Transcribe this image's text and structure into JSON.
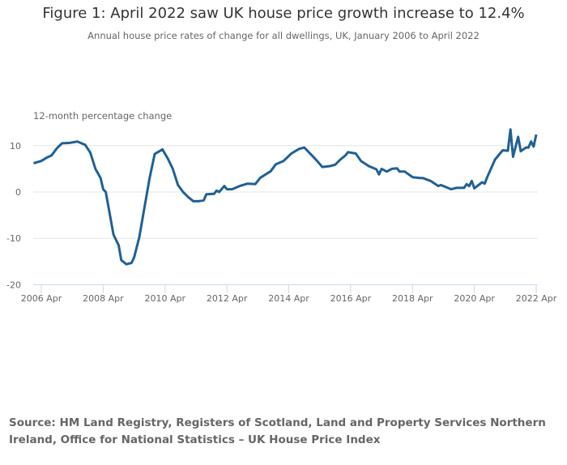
{
  "chart_data": {
    "type": "line",
    "title": "Figure 1: April 2022 saw UK house price growth increase to 12.4%",
    "subtitle": "Annual house price rates of change for all dwellings, UK, January 2006 to April 2022",
    "ylabel": "12-month percentage change",
    "xlabel": "",
    "ylim": [
      -20,
      13.5
    ],
    "yticks": [
      10,
      0,
      -10,
      -20
    ],
    "ytick_labels": [
      "10",
      "0",
      "-10",
      "-20"
    ],
    "xticks": [
      "2006-04",
      "2008-04",
      "2010-04",
      "2012-04",
      "2014-04",
      "2016-04",
      "2018-04",
      "2020-04",
      "2022-04"
    ],
    "xtick_labels": [
      "2006 Apr",
      "2008 Apr",
      "2010 Apr",
      "2012 Apr",
      "2014 Apr",
      "2016 Apr",
      "2018 Apr",
      "2020 Apr",
      "2022 Apr"
    ],
    "x_range": [
      "2006-01",
      "2022-04"
    ],
    "grid": true,
    "color": "#206095",
    "series": [
      {
        "name": "UK",
        "points": [
          [
            "2006-01",
            6.2
          ],
          [
            "2006-04",
            6.7
          ],
          [
            "2006-06",
            7.4
          ],
          [
            "2006-08",
            7.9
          ],
          [
            "2006-10",
            9.4
          ],
          [
            "2006-12",
            10.5
          ],
          [
            "2007-03",
            10.6
          ],
          [
            "2007-06",
            10.9
          ],
          [
            "2007-09",
            10.2
          ],
          [
            "2007-11",
            8.5
          ],
          [
            "2008-01",
            5.0
          ],
          [
            "2008-03",
            3.0
          ],
          [
            "2008-04",
            0.6
          ],
          [
            "2008-05",
            0.0
          ],
          [
            "2008-08",
            -9.2
          ],
          [
            "2008-10",
            -11.5
          ],
          [
            "2008-11",
            -14.7
          ],
          [
            "2009-01",
            -15.6
          ],
          [
            "2009-03",
            -15.3
          ],
          [
            "2009-04",
            -14.1
          ],
          [
            "2009-06",
            -9.8
          ],
          [
            "2009-08",
            -3.4
          ],
          [
            "2009-10",
            3.0
          ],
          [
            "2009-12",
            8.2
          ],
          [
            "2010-03",
            9.2
          ],
          [
            "2010-04",
            8.2
          ],
          [
            "2010-05",
            7.3
          ],
          [
            "2010-07",
            5.0
          ],
          [
            "2010-09",
            1.5
          ],
          [
            "2010-11",
            0.0
          ],
          [
            "2011-01",
            -1.1
          ],
          [
            "2011-03",
            -2.0
          ],
          [
            "2011-05",
            -2.0
          ],
          [
            "2011-07",
            -1.8
          ],
          [
            "2011-08",
            -0.5
          ],
          [
            "2011-11",
            -0.4
          ],
          [
            "2011-12",
            0.3
          ],
          [
            "2012-01",
            0.0
          ],
          [
            "2012-03",
            1.3
          ],
          [
            "2012-04",
            0.6
          ],
          [
            "2012-06",
            0.6
          ],
          [
            "2012-09",
            1.3
          ],
          [
            "2012-12",
            1.8
          ],
          [
            "2013-03",
            1.7
          ],
          [
            "2013-05",
            3.1
          ],
          [
            "2013-07",
            3.8
          ],
          [
            "2013-09",
            4.5
          ],
          [
            "2013-11",
            6.0
          ],
          [
            "2014-02",
            6.7
          ],
          [
            "2014-05",
            8.3
          ],
          [
            "2014-08",
            9.3
          ],
          [
            "2014-10",
            9.6
          ],
          [
            "2015-01",
            7.9
          ],
          [
            "2015-03",
            6.7
          ],
          [
            "2015-05",
            5.4
          ],
          [
            "2015-08",
            5.6
          ],
          [
            "2015-10",
            5.9
          ],
          [
            "2015-12",
            7.0
          ],
          [
            "2016-02",
            7.9
          ],
          [
            "2016-03",
            8.6
          ],
          [
            "2016-06",
            8.3
          ],
          [
            "2016-08",
            6.7
          ],
          [
            "2016-11",
            5.6
          ],
          [
            "2017-02",
            4.9
          ],
          [
            "2017-03",
            3.8
          ],
          [
            "2017-04",
            5.0
          ],
          [
            "2017-06",
            4.4
          ],
          [
            "2017-08",
            5.0
          ],
          [
            "2017-10",
            5.1
          ],
          [
            "2017-11",
            4.4
          ],
          [
            "2018-01",
            4.4
          ],
          [
            "2018-04",
            3.2
          ],
          [
            "2018-07",
            3.0
          ],
          [
            "2018-08",
            3.0
          ],
          [
            "2018-11",
            2.4
          ],
          [
            "2019-02",
            1.3
          ],
          [
            "2019-03",
            1.5
          ],
          [
            "2019-07",
            0.6
          ],
          [
            "2019-09",
            0.9
          ],
          [
            "2019-12",
            0.9
          ],
          [
            "2020-01",
            1.7
          ],
          [
            "2020-02",
            1.3
          ],
          [
            "2020-03",
            2.4
          ],
          [
            "2020-04",
            0.8
          ],
          [
            "2020-07",
            2.1
          ],
          [
            "2020-08",
            1.8
          ],
          [
            "2020-09",
            3.2
          ],
          [
            "2020-12",
            7.0
          ],
          [
            "2021-03",
            9.0
          ],
          [
            "2021-05",
            8.9
          ],
          [
            "2021-06",
            13.5
          ],
          [
            "2021-07",
            7.6
          ],
          [
            "2021-09",
            11.9
          ],
          [
            "2021-10",
            8.8
          ],
          [
            "2021-12",
            9.6
          ],
          [
            "2022-01",
            9.6
          ],
          [
            "2022-02",
            10.9
          ],
          [
            "2022-03",
            9.8
          ],
          [
            "2022-04",
            12.4
          ]
        ]
      }
    ],
    "source": "Source: HM Land Registry, Registers of Scotland, Land and Property Services Northern Ireland, Office for National Statistics – UK House Price Index"
  }
}
